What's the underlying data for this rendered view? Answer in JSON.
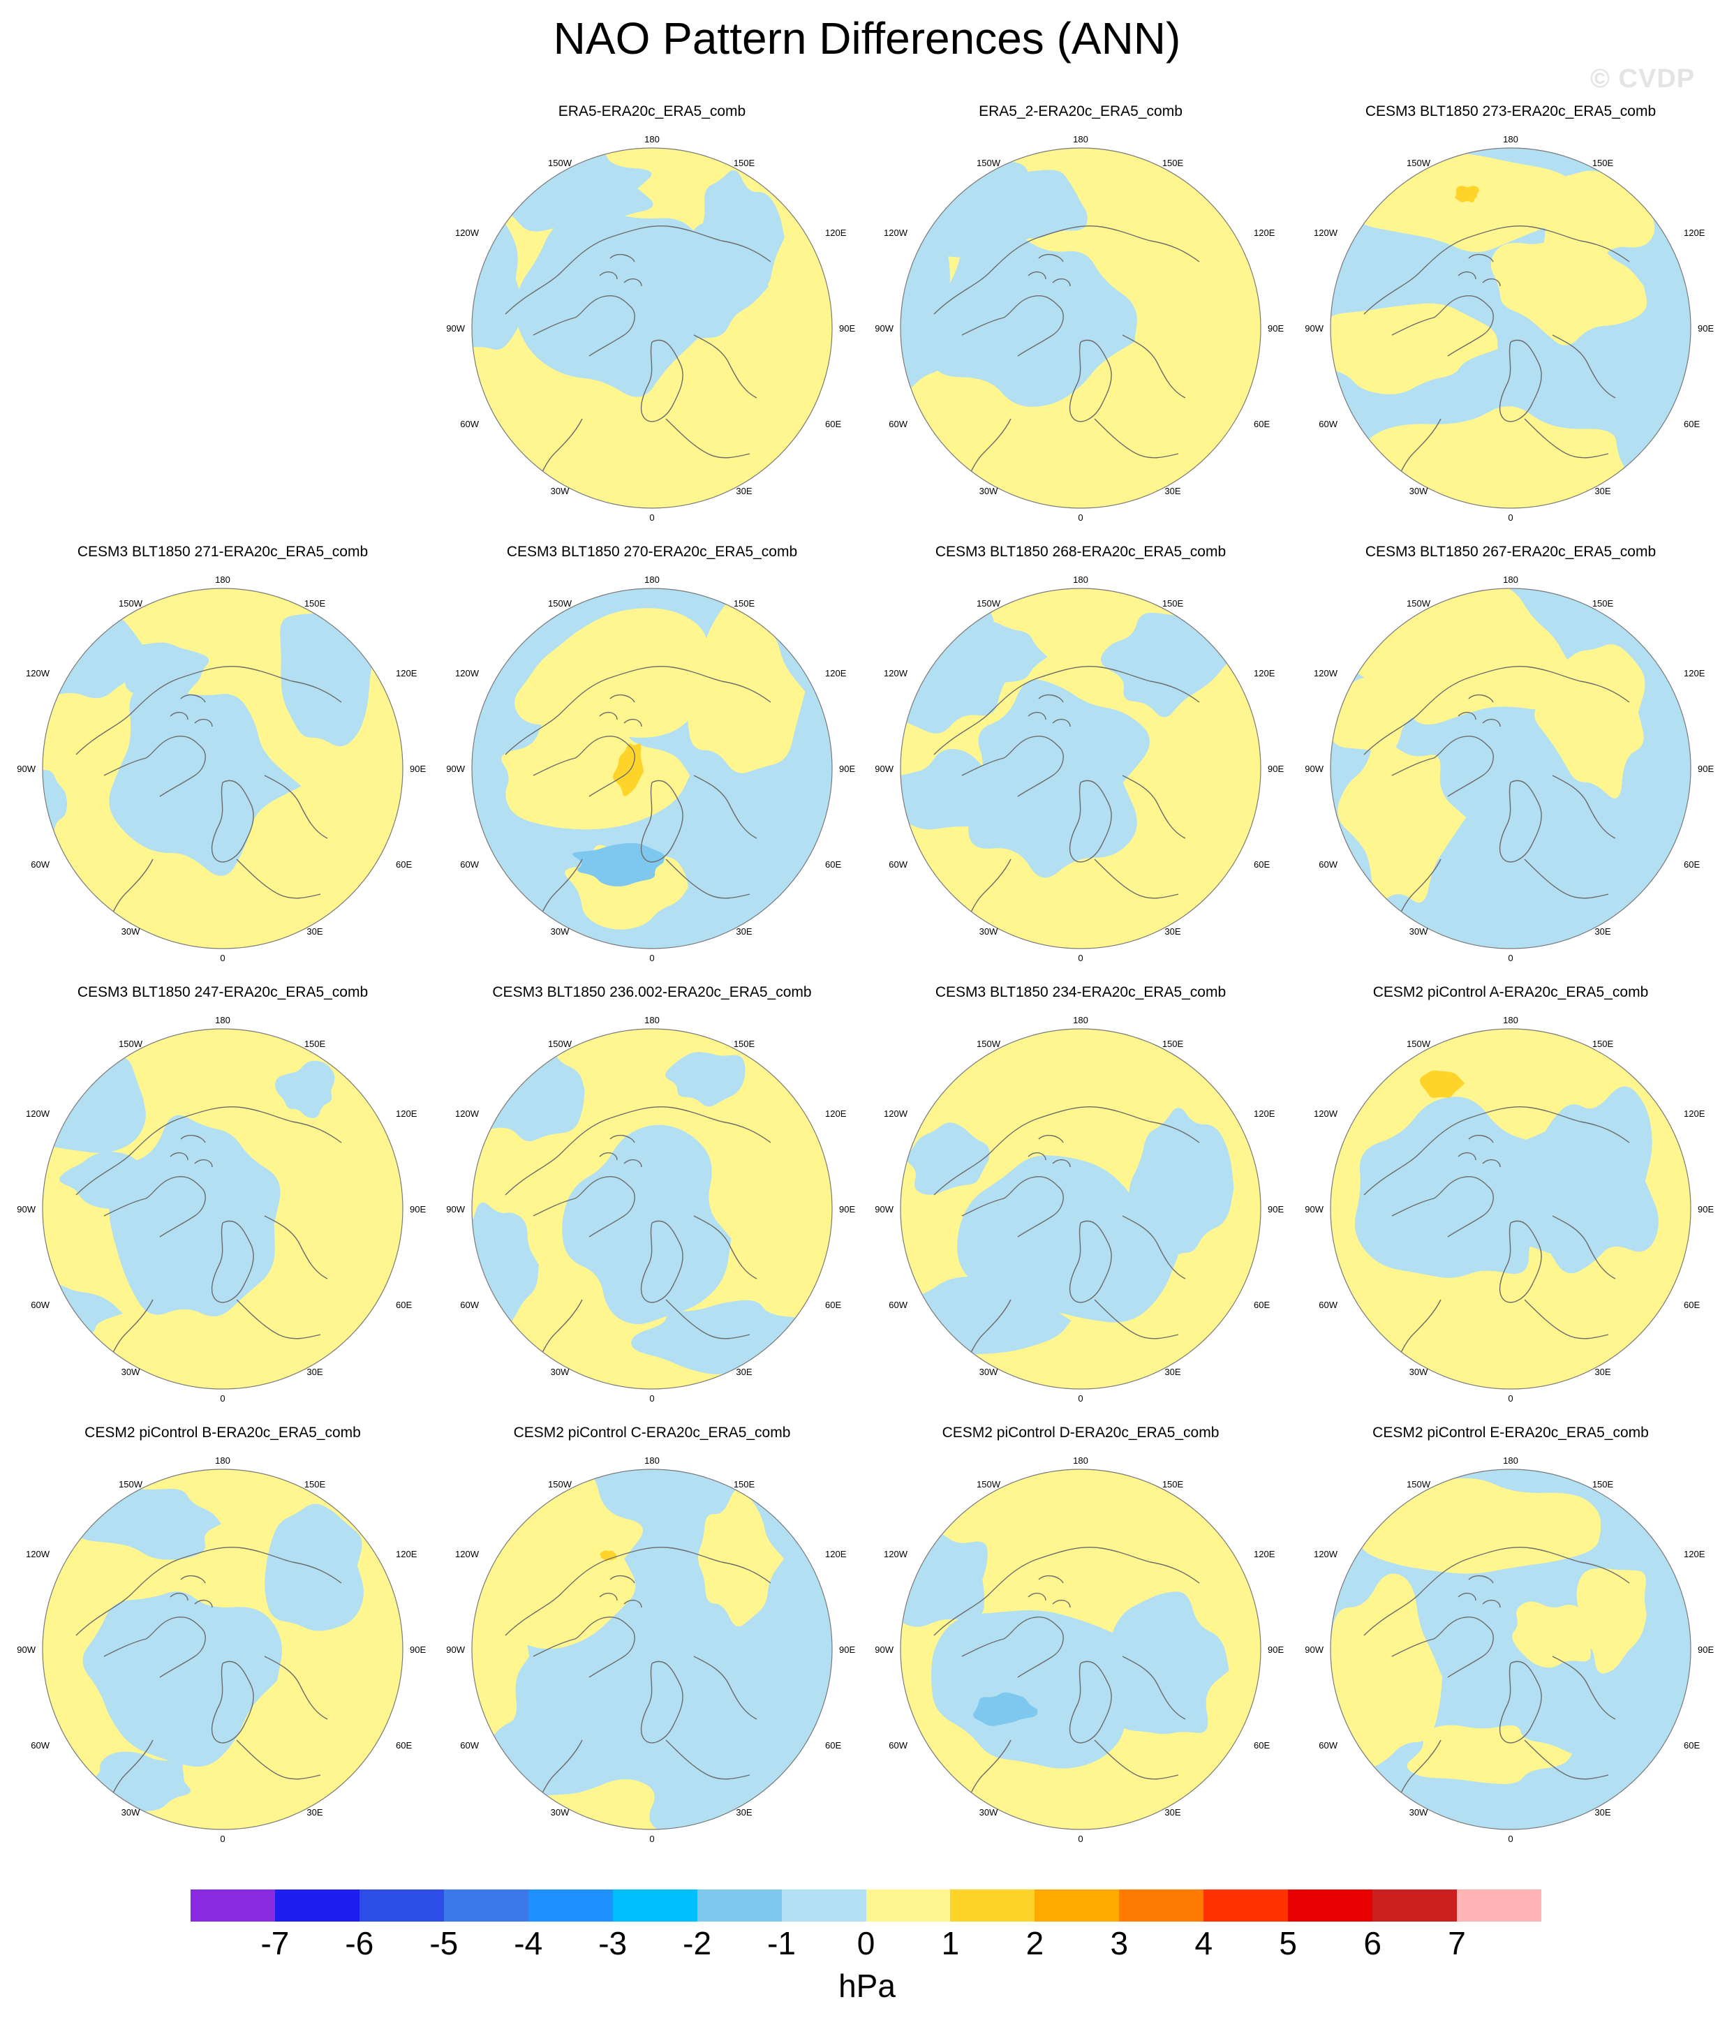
{
  "title": "NAO Pattern Differences (ANN)",
  "watermark": "© CVDP",
  "colors": {
    "positive_weak": "#fff68f",
    "negative_weak": "#b3dff2",
    "coastline": "#6b6b6b",
    "border": "#7a7a7a"
  },
  "map_labels": {
    "top": "180",
    "bottom": "0",
    "upper_left": "150W",
    "upper_right": "150E",
    "left_upper": "120W",
    "right_upper": "120E",
    "left": "90W",
    "right": "90E",
    "left_lower": "60W",
    "right_lower": "60E",
    "lower_left": "30W",
    "lower_right": "30E"
  },
  "panels": [
    {
      "title": "ERA5-ERA20c_ERA5_comb"
    },
    {
      "title": "ERA5_2-ERA20c_ERA5_comb"
    },
    {
      "title": "CESM3 BLT1850 273-ERA20c_ERA5_comb"
    },
    {
      "title": "CESM3 BLT1850 271-ERA20c_ERA5_comb"
    },
    {
      "title": "CESM3 BLT1850 270-ERA20c_ERA5_comb"
    },
    {
      "title": "CESM3 BLT1850 268-ERA20c_ERA5_comb"
    },
    {
      "title": "CESM3 BLT1850 267-ERA20c_ERA5_comb"
    },
    {
      "title": "CESM3 BLT1850 247-ERA20c_ERA5_comb"
    },
    {
      "title": "CESM3 BLT1850 236.002-ERA20c_ERA5_comb"
    },
    {
      "title": "CESM3 BLT1850 234-ERA20c_ERA5_comb"
    },
    {
      "title": "CESM2 piControl A-ERA20c_ERA5_comb"
    },
    {
      "title": "CESM2 piControl B-ERA20c_ERA5_comb"
    },
    {
      "title": "CESM2 piControl C-ERA20c_ERA5_comb"
    },
    {
      "title": "CESM2 piControl D-ERA20c_ERA5_comb"
    },
    {
      "title": "CESM2 piControl E-ERA20c_ERA5_comb"
    }
  ],
  "colorbar": {
    "units": "hPa",
    "tick_labels": [
      "-7",
      "-6",
      "-5",
      "-4",
      "-3",
      "-2",
      "-1",
      "0",
      "1",
      "2",
      "3",
      "4",
      "5",
      "6",
      "7"
    ],
    "colors": [
      "#8a2be2",
      "#1e1ef0",
      "#2d4ee6",
      "#3b78e8",
      "#1e90ff",
      "#00bfff",
      "#7ec8f0",
      "#b3dff2",
      "#fff68f",
      "#ffd42a",
      "#ffaa00",
      "#ff7a00",
      "#ff3300",
      "#e60000",
      "#cc1f1f",
      "#ffb3b3"
    ]
  }
}
